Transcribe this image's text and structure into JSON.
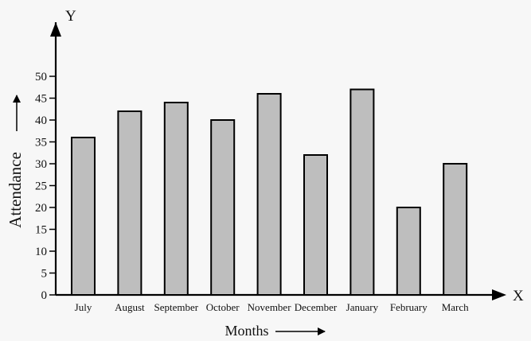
{
  "chart_data": {
    "type": "bar",
    "title": "",
    "xlabel": "Months",
    "ylabel": "Attendance",
    "x_axis_letter": "X",
    "y_axis_letter": "Y",
    "categories": [
      "July",
      "August",
      "September",
      "October",
      "November",
      "December",
      "January",
      "February",
      "March"
    ],
    "values": [
      36,
      42,
      44,
      40,
      46,
      32,
      47,
      20,
      30
    ],
    "ylim": [
      0,
      50
    ],
    "yticks": [
      0,
      5,
      10,
      15,
      20,
      25,
      30,
      35,
      40,
      45,
      50
    ],
    "grid": false,
    "bar_color": "#bebebe",
    "outline_color": "#000000"
  }
}
